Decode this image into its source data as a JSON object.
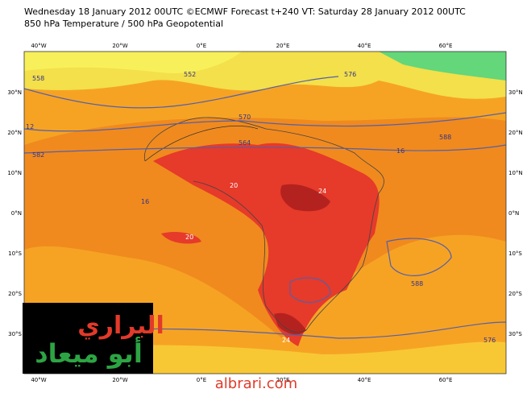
{
  "header": {
    "title_line1": "Wednesday 18 January 2012 00UTC ©ECMWF Forecast t+240 VT: Saturday 28 January 2012 00UTC",
    "title_line2": "850 hPa Temperature / 500 hPa Geopotential"
  },
  "axes": {
    "longitudes": [
      "40°W",
      "20°W",
      "0°E",
      "20°E",
      "40°E",
      "60°E"
    ],
    "latitudes": [
      "30°N",
      "20°N",
      "10°N",
      "0°N",
      "10°S",
      "20°S",
      "30°S"
    ]
  },
  "contour_labels": [
    "588",
    "582",
    "576",
    "570",
    "564",
    "558",
    "552",
    "12",
    "16",
    "20",
    "24"
  ],
  "logo": {
    "line1": "البراري",
    "line2": "أبو ميعاد"
  },
  "footer": {
    "website": "albrari.com"
  }
}
